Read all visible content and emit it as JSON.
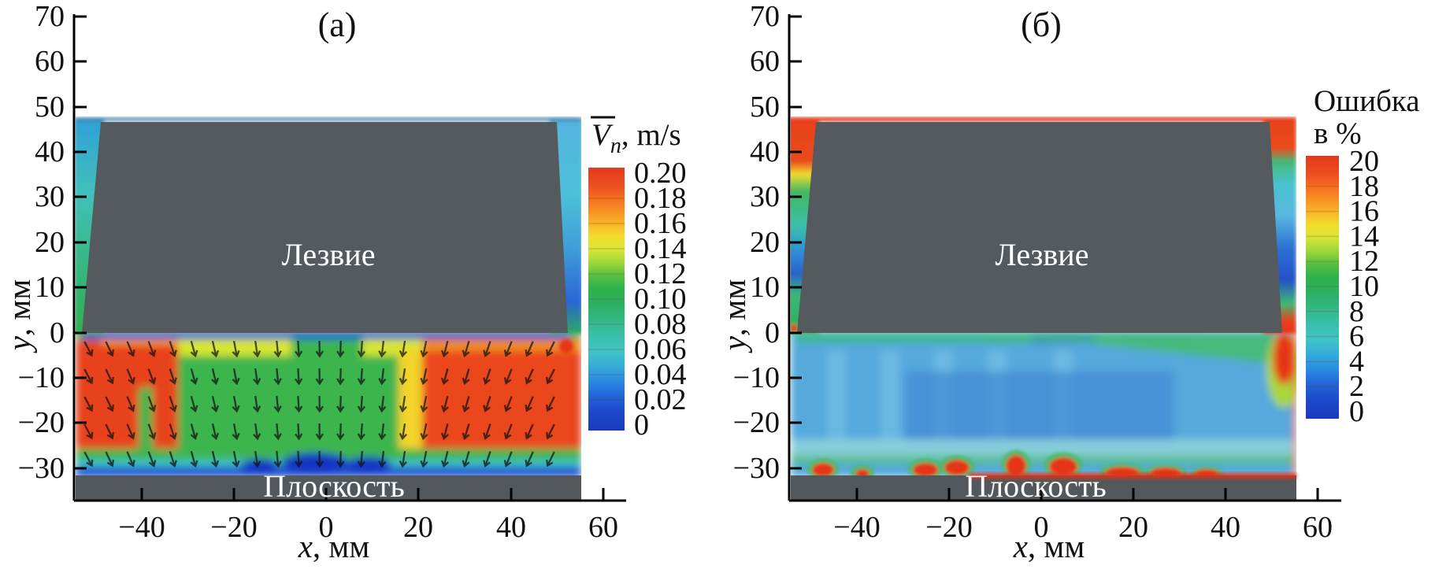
{
  "figure": {
    "background": "#ffffff",
    "blade_color": "#555a5f",
    "plane_color": "#53585c",
    "panels": [
      {
        "id": "a",
        "title": "(a)",
        "x_axis": {
          "label_var": "x",
          "label_unit": ", мм",
          "ticks": [
            "−40",
            "−20",
            "0",
            "20",
            "40",
            "60"
          ]
        },
        "y_axis": {
          "label_var": "y",
          "label_unit": ", мм",
          "ticks": [
            "70",
            "60",
            "50",
            "40",
            "30",
            "20",
            "10",
            "0",
            "−10",
            "−20",
            "−30"
          ]
        },
        "blade_label": "Лезвие",
        "plane_label": "Плоскость",
        "colorbar": {
          "title_symbol": "V",
          "title_sub": "n",
          "title_unit": ", m/s",
          "title_full": "V̄n, m/s",
          "ticks": [
            "0.20",
            "0.18",
            "0.16",
            "0.14",
            "0.12",
            "0.10",
            "0.08",
            "0.06",
            "0.04",
            "0.02",
            "0"
          ]
        }
      },
      {
        "id": "б",
        "title": "(б)",
        "x_axis": {
          "label_var": "x",
          "label_unit": ", мм",
          "ticks": [
            "−40",
            "−20",
            "0",
            "20",
            "40",
            "60"
          ]
        },
        "y_axis": {
          "label_var": "y",
          "label_unit": ", мм",
          "ticks": [
            "70",
            "60",
            "50",
            "40",
            "30",
            "20",
            "10",
            "0",
            "−10",
            "−20",
            "−30"
          ]
        },
        "blade_label": "Лезвие",
        "plane_label": "Плоскость",
        "colorbar": {
          "title_line1": "Ошибка",
          "title_line2": "в %",
          "title_full": "Ошибка в %",
          "ticks": [
            "20",
            "18",
            "16",
            "14",
            "12",
            "10",
            "8",
            "6",
            "4",
            "2",
            "0"
          ]
        }
      }
    ]
  },
  "chart_data": [
    {
      "type": "heatmap",
      "panel": "a",
      "title": "(a)",
      "xlabel": "x, мм",
      "ylabel": "y, мм",
      "x_ticks": [
        -40,
        -20,
        0,
        20,
        40,
        60
      ],
      "y_ticks": [
        70,
        60,
        50,
        40,
        30,
        20,
        10,
        0,
        -10,
        -20,
        -30
      ],
      "x_range": [
        -55,
        62
      ],
      "y_range": [
        -35,
        72
      ],
      "grid": false,
      "colorbar": {
        "label": "V̄n, m/s",
        "min": 0,
        "max": 0.2,
        "tick_step": 0.02,
        "colormap": "rainbow: red(0.20) → orange → yellow → green → cyan → blue(0)"
      },
      "masks": [
        {
          "label": "Лезвие",
          "shape": "gray trapezoid",
          "extent": "y ≈ 0…47 мм, full width x ≈ −55…54 мм"
        },
        {
          "label": "Плоскость",
          "shape": "gray strip",
          "extent": "y below ≈ −31 мм"
        }
      ],
      "field_values": [
        {
          "region": "x −55…−32 мм, y −2…−26 мм (left block)",
          "V_mps": "0.18–0.20 (red)"
        },
        {
          "region": "x ≈ −38 мм vertical streak down to y −28",
          "V_mps": "0.20 (red, yellow rim)"
        },
        {
          "region": "x −30…+17 мм, y −4…−25 мм (center)",
          "V_mps": "0.08–0.12 (green), yellow band 0.14–0.16 at top y −1…−4"
        },
        {
          "region": "x +20…+55 мм, y −2…−26 мм (right block)",
          "V_mps": "0.16–0.20 (orange–red)"
        },
        {
          "region": "thin strip just below blade, y 0…−1",
          "V_mps": "0.02–0.04 (dark blue)"
        },
        {
          "region": "y −26…−31 along plane",
          "V_mps": "0.02–0.10 (green→cyan→blue), dark-blue pockets near x −5…+15"
        },
        {
          "region": "left margin beside blade x ≈ −55, y 0…47",
          "V_mps": "0.04–0.10 (cyan→teal→green)"
        },
        {
          "region": "right margin beside blade x ≈ 54, y 0…47",
          "V_mps": "0.02–0.06 (cyan→blue), red spot at blade corner (x 52, y −3), red column at right edge y −5…−25"
        }
      ],
      "overlay": "grid of small black velocity vectors pointing downward, tilted outward toward left/right edges",
      "legend_position": "right colorbar"
    },
    {
      "type": "heatmap",
      "panel": "б",
      "title": "(б)",
      "xlabel": "x, мм",
      "ylabel": "y, мм",
      "x_ticks": [
        -40,
        -20,
        0,
        20,
        40,
        60
      ],
      "y_ticks": [
        70,
        60,
        50,
        40,
        30,
        20,
        10,
        0,
        -10,
        -20,
        -30
      ],
      "x_range": [
        -55,
        62
      ],
      "y_range": [
        -35,
        72
      ],
      "grid": false,
      "colorbar": {
        "label": "Ошибка в %",
        "min": 0,
        "max": 20,
        "tick_step": 2,
        "colormap": "rainbow: red(20) → orange → yellow → green → cyan → blue(0)"
      },
      "masks": [
        {
          "label": "Лезвие",
          "shape": "gray trapezoid",
          "extent": "y ≈ 0…47 мм, full width x ≈ −55…54 мм"
        },
        {
          "label": "Плоскость",
          "shape": "gray strip",
          "extent": "y below ≈ −31 мм"
        }
      ],
      "field_values": [
        {
          "region": "bulk below blade, y −2…−27 мм",
          "error_pct": "2–6 (blue, lighter cyan striations)"
        },
        {
          "region": "band under blade right half, widening to x 54",
          "error_pct": "8–12 (green wedge)"
        },
        {
          "region": "y −27…−31 along plane",
          "error_pct": "18–20 (red blobs with yellow rims at x ≈ −48, −40, −25…−15, −5, 0…+8, +15…+40)"
        },
        {
          "region": "right data edge x ≈ 53, y 0…−10",
          "error_pct": "20 (tall red blob)"
        },
        {
          "region": "left margin, y 36…47",
          "error_pct": "20 (red), yellow→green 10–14 below"
        },
        {
          "region": "left margin, y 5…30",
          "error_pct": "4–10 (teal/cyan with blue pockets)"
        },
        {
          "region": "right margin, y 42…47",
          "error_pct": "20 (red), green 8–10 below"
        },
        {
          "region": "right margin, y 8…38",
          "error_pct": "0–6 (cyan→dark blue)"
        },
        {
          "region": "thin line along top data edge y ≈ 47",
          "error_pct": "20 (red)"
        }
      ],
      "legend_position": "right colorbar"
    }
  ]
}
